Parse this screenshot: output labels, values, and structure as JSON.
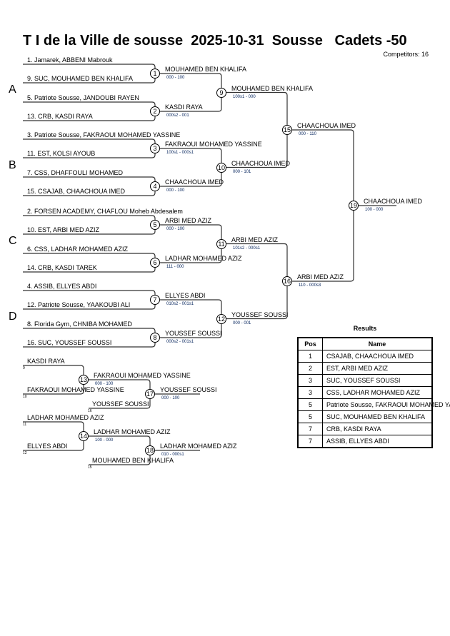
{
  "header": {
    "title": "T I de la Ville de sousse  2025-10-31  Sousse   Cadets -50",
    "competitors": "Competitors: 16"
  },
  "pools": [
    "A",
    "B",
    "C",
    "D"
  ],
  "entrants": [
    "1. Jamarek, ABBENI Mabrouk",
    "9. SUC, MOUHAMED BEN KHALIFA",
    "5. Patriote Sousse, JANDOUBI RAYEN",
    "13. CRB, KASDI RAYA",
    "3. Patriote Sousse, FAKRAOUI MOHAMED YASSINE",
    "11. EST, KOLSI AYOUB",
    "7. CSS, DHAFFOULI MOHAMED",
    "15. CSAJAB, CHAACHOUA IMED",
    "2. FORSEN ACADEMY, CHAFLOU Moheb Abdesalem",
    "10. EST, ARBI MED AZIZ",
    "6. CSS, LADHAR MOHAMED AZIZ",
    "14. CRB, KASDI TAREK",
    "4. ASSIB, ELLYES ABDI",
    "12. Patriote Sousse, YAAKOUBI ALI",
    "8. Florida Gym, CHNIBA MOHAMED",
    "16. SUC, YOUSSEF SOUSSI"
  ],
  "matches": [
    {
      "no": "1",
      "winner": "MOUHAMED BEN KHALIFA",
      "score": "000 - 100"
    },
    {
      "no": "2",
      "winner": "KASDI RAYA",
      "score": "000s2 - 001"
    },
    {
      "no": "3",
      "winner": "FAKRAOUI MOHAMED YASSINE",
      "score": "100s1 - 000s1"
    },
    {
      "no": "4",
      "winner": "CHAACHOUA IMED",
      "score": "000 - 100"
    },
    {
      "no": "5",
      "winner": "ARBI MED AZIZ",
      "score": "000 - 100"
    },
    {
      "no": "6",
      "winner": "LADHAR MOHAMED AZIZ",
      "score": "111 - 000"
    },
    {
      "no": "7",
      "winner": "ELLYES ABDI",
      "score": "010s2 - 001s1"
    },
    {
      "no": "8",
      "winner": "YOUSSEF SOUSSI",
      "score": "000s2 - 001s1"
    },
    {
      "no": "9",
      "winner": "MOUHAMED BEN KHALIFA",
      "score": "100s1 - 000"
    },
    {
      "no": "10",
      "winner": "CHAACHOUA IMED",
      "score": "000 - 101"
    },
    {
      "no": "11",
      "winner": "ARBI MED AZIZ",
      "score": "101s2 - 000s1"
    },
    {
      "no": "12",
      "winner": "YOUSSEF SOUSSI",
      "score": "000 - 001"
    },
    {
      "no": "15",
      "winner": "CHAACHOUA IMED",
      "score": "000 - 110"
    },
    {
      "no": "16",
      "winner": "ARBI MED AZIZ",
      "score": "110 - 000s3"
    },
    {
      "no": "19",
      "winner": "CHAACHOUA IMED",
      "score": "100 - 000"
    }
  ],
  "repechage": {
    "entries": [
      {
        "name": "KASDI RAYA",
        "from": "9"
      },
      {
        "name": "FAKRAOUI MOHAMED YASSINE",
        "from": "10"
      },
      {
        "name": "YOUSSEF SOUSSI",
        "from": "16"
      },
      {
        "name": "LADHAR MOHAMED AZIZ",
        "from": "11"
      },
      {
        "name": "ELLYES ABDI",
        "from": "12"
      },
      {
        "name": "MOUHAMED BEN KHALIFA",
        "from": "15"
      }
    ],
    "matches": [
      {
        "no": "13",
        "winner": "FAKRAOUI MOHAMED YASSINE",
        "score": "000 - 100"
      },
      {
        "no": "17",
        "winner": "YOUSSEF SOUSSI",
        "score": "000 - 100"
      },
      {
        "no": "14",
        "winner": "LADHAR MOHAMED AZIZ",
        "score": "100 - 000"
      },
      {
        "no": "18",
        "winner": "LADHAR MOHAMED AZIZ",
        "score": "010 - 000s1"
      }
    ]
  },
  "results": {
    "title": "Results",
    "headers": [
      "Pos",
      "Name"
    ],
    "rows": [
      {
        "pos": "1",
        "name": "CSAJAB, CHAACHOUA IMED"
      },
      {
        "pos": "2",
        "name": "EST, ARBI MED AZIZ"
      },
      {
        "pos": "3",
        "name": "SUC, YOUSSEF SOUSSI"
      },
      {
        "pos": "3",
        "name": "CSS, LADHAR MOHAMED AZIZ"
      },
      {
        "pos": "5",
        "name": "Patriote Sousse, FAKRAOUI MOHAMED YASSINE"
      },
      {
        "pos": "5",
        "name": "SUC, MOUHAMED BEN KHALIFA"
      },
      {
        "pos": "7",
        "name": "CRB, KASDI RAYA"
      },
      {
        "pos": "7",
        "name": "ASSIB, ELLYES ABDI"
      }
    ]
  },
  "colors": {
    "score": "#00205a",
    "line": "#333333"
  }
}
